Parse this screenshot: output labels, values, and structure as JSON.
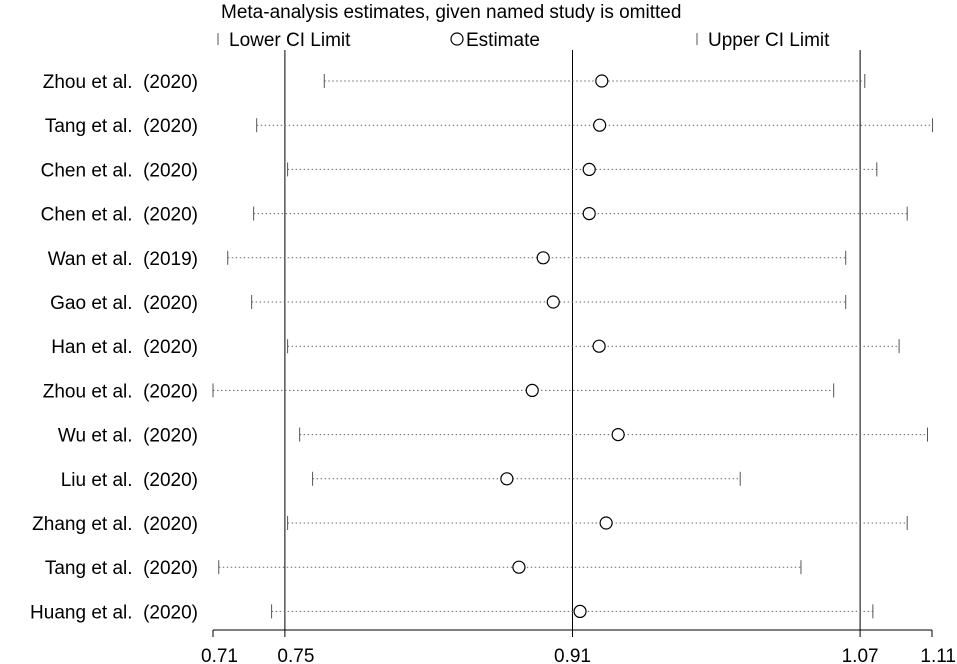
{
  "chart_data": {
    "type": "scatter",
    "title": "Meta-analysis estimates, given named study is omitted",
    "legend": {
      "placement": "top",
      "entries": [
        "Lower CI Limit",
        "Estimate",
        "Upper CI Limit"
      ]
    },
    "xlim": [
      0.71,
      1.11
    ],
    "ref_lines": [
      0.75,
      0.91,
      1.07
    ],
    "x_ticks": [
      0.71,
      0.75,
      0.91,
      1.07,
      1.11
    ],
    "x_tick_labels": [
      "0.71",
      "0.75",
      "0.91",
      "1.07",
      "1.11"
    ],
    "studies": [
      {
        "label": "Zhou et al.  (2020)",
        "lower": 0.7719,
        "estimate": 0.9263,
        "upper": 1.0726
      },
      {
        "label": "Tang et al.  (2020)",
        "lower": 0.7343,
        "estimate": 0.9251,
        "upper": 1.1103
      },
      {
        "label": "Chen et al.  (2020)",
        "lower": 0.7515,
        "estimate": 0.9193,
        "upper": 1.0793
      },
      {
        "label": "Chen et al.  (2020)",
        "lower": 0.7326,
        "estimate": 0.9193,
        "upper": 1.0962
      },
      {
        "label": "Wan et al.  (2019)",
        "lower": 0.7182,
        "estimate": 0.8937,
        "upper": 1.062
      },
      {
        "label": "Gao et al.  (2020)",
        "lower": 0.7315,
        "estimate": 0.8993,
        "upper": 1.062
      },
      {
        "label": "Han et al.  (2020)",
        "lower": 0.7515,
        "estimate": 0.9248,
        "upper": 1.0917
      },
      {
        "label": "Zhou et al.  (2020)",
        "lower": 0.71,
        "estimate": 0.8876,
        "upper": 1.0553
      },
      {
        "label": "Wu et al.  (2020)",
        "lower": 0.7582,
        "estimate": 0.9354,
        "upper": 1.1075
      },
      {
        "label": "Liu et al.  (2020)",
        "lower": 0.7654,
        "estimate": 0.8735,
        "upper": 1.0033
      },
      {
        "label": "Zhang et al.  (2020)",
        "lower": 0.7515,
        "estimate": 0.9287,
        "upper": 1.0962
      },
      {
        "label": "Tang et al.  (2020)",
        "lower": 0.7132,
        "estimate": 0.8802,
        "upper": 1.0371
      },
      {
        "label": "Huang et al.  (2020)",
        "lower": 0.7426,
        "estimate": 0.9142,
        "upper": 1.0771
      }
    ]
  }
}
